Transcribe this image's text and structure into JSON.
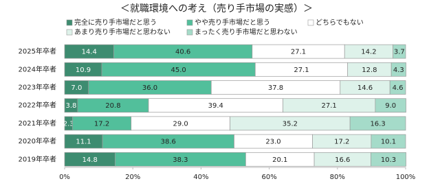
{
  "chart_data": {
    "type": "stacked-bar-horizontal",
    "title": "＜就職環境への考え（売り手市場の実感）＞",
    "categories": [
      "2025年卒者",
      "2024年卒者",
      "2023年卒者",
      "2022年卒者",
      "2021年卒者",
      "2020年卒者",
      "2019年卒者"
    ],
    "series": [
      {
        "name": "完全に売り手市場だと思う",
        "color": "#3d8c70",
        "values": [
          14.4,
          10.9,
          7.0,
          3.8,
          2.3,
          11.1,
          14.8
        ],
        "value_labels": [
          "14.4",
          "10.9",
          "7.0",
          "3.8",
          "2.3",
          "11.1",
          "14.8"
        ]
      },
      {
        "name": "やや売り手市場だと思う",
        "color": "#52bf9b",
        "values": [
          40.6,
          45.0,
          36.0,
          20.8,
          17.2,
          38.6,
          38.3
        ],
        "value_labels": [
          "40.6",
          "45.0",
          "36.0",
          "20.8",
          "17.2",
          "38.6",
          "38.3"
        ]
      },
      {
        "name": "どちらでもない",
        "color": "#ffffff",
        "values": [
          27.1,
          27.1,
          37.8,
          39.4,
          29.0,
          23.0,
          20.1
        ],
        "value_labels": [
          "27.1",
          "27.1",
          "37.8",
          "39.4",
          "29.0",
          "23.0",
          "20.1"
        ]
      },
      {
        "name": "あまり売り手市場だと思わない",
        "color": "#def2ea",
        "values": [
          14.2,
          12.8,
          14.6,
          27.1,
          35.2,
          17.2,
          16.6
        ],
        "value_labels": [
          "14.2",
          "12.8",
          "14.6",
          "27.1",
          "35.2",
          "17.2",
          "16.6"
        ]
      },
      {
        "name": "まったく売り手市場だと思わない",
        "color": "#a5dbc9",
        "values": [
          3.7,
          4.3,
          4.6,
          9.0,
          16.3,
          10.1,
          10.3
        ],
        "value_labels": [
          "3.7",
          "4.3",
          "4.6",
          "9.0",
          "16.3",
          "10.1",
          "10.3"
        ]
      }
    ],
    "xlim": [
      0,
      100
    ],
    "xticks": [
      {
        "value": 0,
        "label": "0%"
      },
      {
        "value": 20,
        "label": "20%"
      },
      {
        "value": 40,
        "label": "40%"
      },
      {
        "value": 60,
        "label": "60%"
      },
      {
        "value": 80,
        "label": "80%"
      },
      {
        "value": 100,
        "label": "100%"
      }
    ],
    "grid": false
  }
}
